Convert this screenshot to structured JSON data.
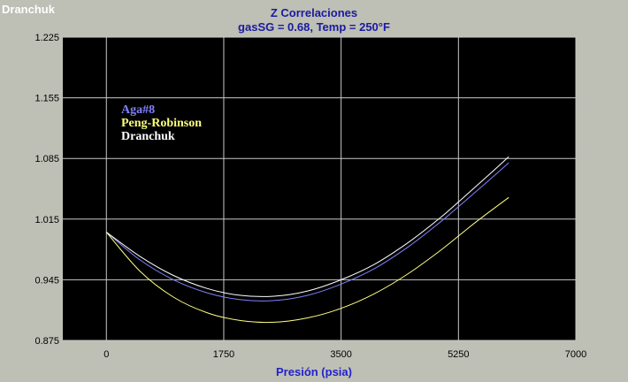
{
  "window_label": "Dranchuk",
  "chart_data": {
    "type": "line",
    "title": "Z Correlaciones",
    "subtitle": "gasSG = 0.68, Temp = 250°F",
    "xlabel": "Presión (psia)",
    "ylabel": "",
    "xlim": [
      -650,
      7000
    ],
    "ylim": [
      0.875,
      1.225
    ],
    "xticks": [
      0,
      1750,
      3500,
      5250,
      7000
    ],
    "xtick_labels": [
      "0",
      "1750",
      "3500",
      "5250",
      "7000"
    ],
    "yticks": [
      0.875,
      0.945,
      1.015,
      1.085,
      1.155,
      1.225
    ],
    "ytick_labels": [
      "0.875",
      "0.945",
      "1.015",
      "1.085",
      "1.155",
      "1.225"
    ],
    "grid": true,
    "legend_position": "top-left",
    "background": "#000000",
    "series": [
      {
        "name": "Aga#8",
        "color": "#8080ff",
        "x": [
          0,
          500,
          1000,
          1500,
          2000,
          2500,
          3000,
          3500,
          4000,
          4500,
          5000,
          5500,
          6000
        ],
        "values": [
          1.0,
          0.968,
          0.945,
          0.93,
          0.922,
          0.921,
          0.927,
          0.94,
          0.958,
          0.983,
          1.013,
          1.046,
          1.08
        ]
      },
      {
        "name": "Peng-Robinson",
        "color": "#ffff80",
        "x": [
          0,
          500,
          1000,
          1500,
          2000,
          2500,
          3000,
          3500,
          4000,
          4500,
          5000,
          5500,
          6000
        ],
        "values": [
          1.0,
          0.955,
          0.925,
          0.907,
          0.898,
          0.896,
          0.901,
          0.912,
          0.929,
          0.952,
          0.98,
          1.011,
          1.04
        ]
      },
      {
        "name": "Dranchuk",
        "color": "#ffffff",
        "x": [
          0,
          500,
          1000,
          1500,
          2000,
          2500,
          3000,
          3500,
          4000,
          4500,
          5000,
          5500,
          6000
        ],
        "values": [
          1.0,
          0.972,
          0.95,
          0.935,
          0.927,
          0.926,
          0.932,
          0.945,
          0.963,
          0.988,
          1.018,
          1.052,
          1.087
        ]
      }
    ]
  }
}
